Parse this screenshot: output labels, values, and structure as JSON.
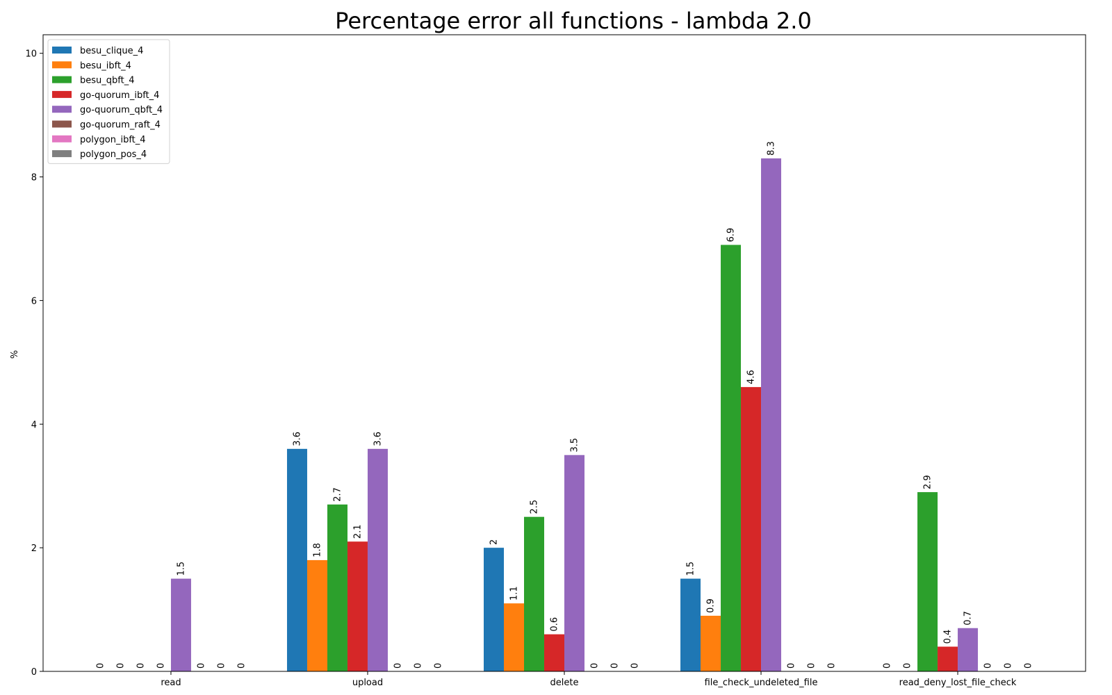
{
  "chart_data": {
    "type": "bar",
    "title": "Percentage error all functions - lambda 2.0",
    "xlabel": "",
    "ylabel": "%",
    "ylim": [
      0,
      10.3
    ],
    "yticks": [
      0,
      2,
      4,
      6,
      8,
      10
    ],
    "grid": false,
    "legend_position": "top-left",
    "categories": [
      "read",
      "upload",
      "delete",
      "file_check_undeleted_file",
      "read_deny_lost_file_check"
    ],
    "series": [
      {
        "name": "besu_clique_4",
        "color": "#1f77b4",
        "values": [
          0,
          3.6,
          2,
          1.5,
          0
        ]
      },
      {
        "name": "besu_ibft_4",
        "color": "#ff7f0e",
        "values": [
          0,
          1.8,
          1.1,
          0.9,
          0
        ]
      },
      {
        "name": "besu_qbft_4",
        "color": "#2ca02c",
        "values": [
          0,
          2.7,
          2.5,
          6.9,
          2.9
        ]
      },
      {
        "name": "go-quorum_ibft_4",
        "color": "#d62728",
        "values": [
          0,
          2.1,
          0.6,
          4.6,
          0.4
        ]
      },
      {
        "name": "go-quorum_qbft_4",
        "color": "#9467bd",
        "values": [
          1.5,
          3.6,
          3.5,
          8.3,
          0.7
        ]
      },
      {
        "name": "go-quorum_raft_4",
        "color": "#8c564b",
        "values": [
          0,
          0,
          0,
          0,
          0
        ]
      },
      {
        "name": "polygon_ibft_4",
        "color": "#e377c2",
        "values": [
          0,
          0,
          0,
          0,
          0
        ]
      },
      {
        "name": "polygon_pos_4",
        "color": "#7f7f7f",
        "values": [
          0,
          0,
          0,
          0,
          0
        ]
      }
    ]
  }
}
